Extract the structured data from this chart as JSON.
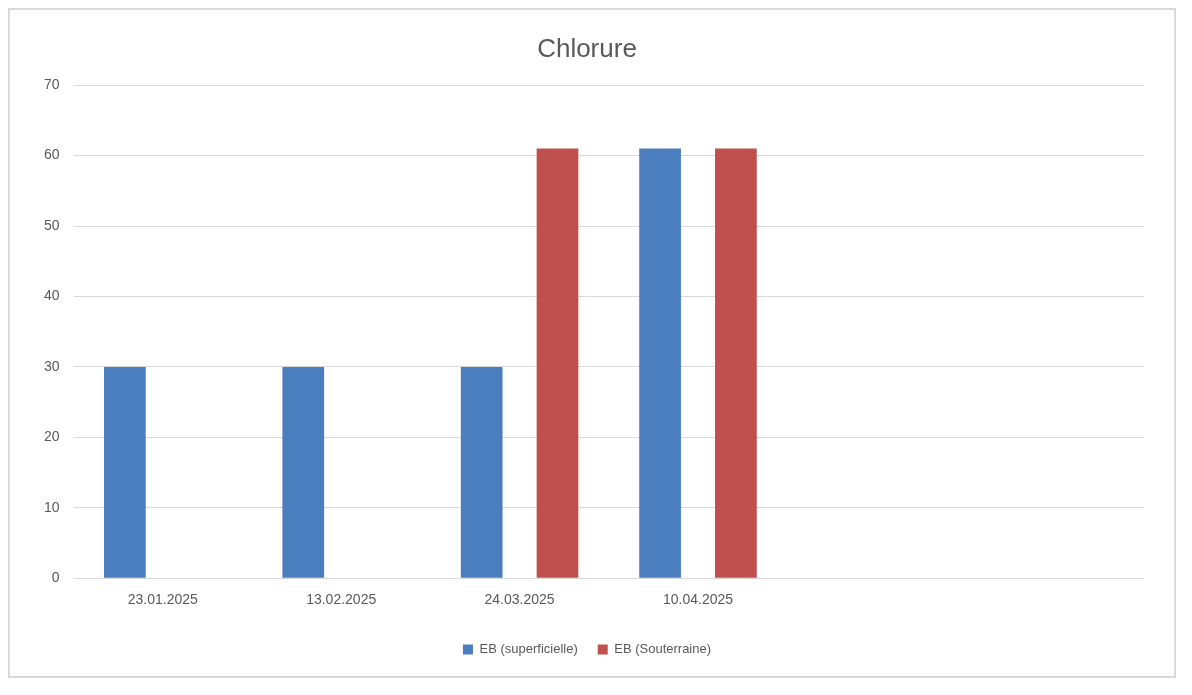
{
  "chart_data": {
    "type": "bar",
    "title": "Chlorure",
    "categories": [
      "23.01.2025",
      "13.02.2025",
      "24.03.2025",
      "10.04.2025",
      null,
      null
    ],
    "series": [
      {
        "name": "EB (superficielle)",
        "color": "#4a7ebf",
        "values": [
          30,
          30,
          30,
          61,
          null,
          null
        ]
      },
      {
        "name": "EB (Souterraine)",
        "color": "#c0504d",
        "values": [
          null,
          null,
          61,
          61,
          null,
          null
        ]
      }
    ],
    "ylim": [
      0,
      70
    ],
    "yticks": [
      0,
      10,
      20,
      30,
      40,
      50,
      60,
      70
    ],
    "grid": "y",
    "legend": "bottom"
  }
}
